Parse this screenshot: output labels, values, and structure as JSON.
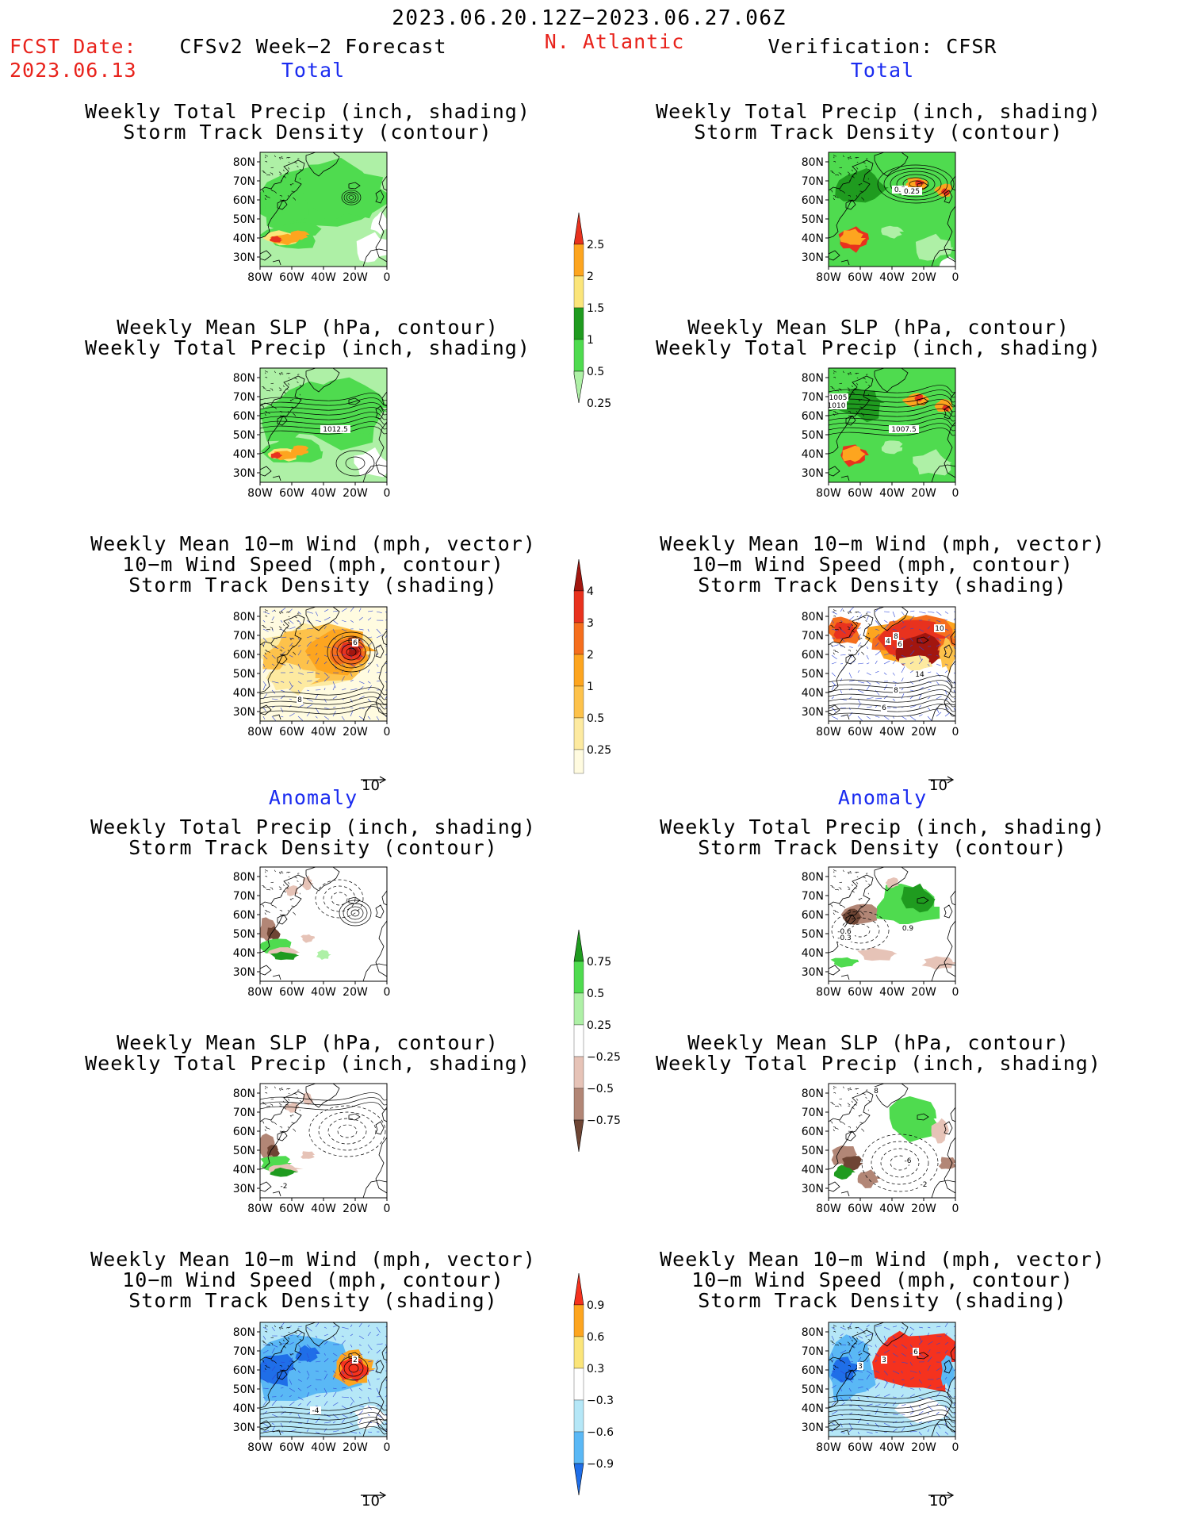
{
  "header": {
    "period": "2023.06.20.12Z−2023.06.27.06Z",
    "fcst_date_label": "FCST Date:",
    "fcst_date_value": "2023.06.13",
    "left_title": "CFSv2 Week−2 Forecast",
    "region": "N. Atlantic",
    "right_title": "Verification: CFSR"
  },
  "sections": {
    "total": "Total",
    "anomaly": "Anomaly"
  },
  "panel_titles": {
    "precip_storm": [
      "Weekly Total Precip (inch, shading)",
      "Storm Track Density (contour)"
    ],
    "slp_precip": [
      "Weekly Mean SLP (hPa, contour)",
      "Weekly Total Precip (inch, shading)"
    ],
    "wind_storm": [
      "Weekly Mean 10−m Wind (mph, vector)",
      "10−m Wind Speed (mph, contour)",
      "Storm Track Density (shading)"
    ]
  },
  "axes": {
    "lat_ticks": [
      "80N",
      "70N",
      "60N",
      "50N",
      "40N",
      "30N"
    ],
    "lon_ticks": [
      "80W",
      "60W",
      "40W",
      "20W",
      "0"
    ]
  },
  "vector_ref": "10",
  "contour_labels": {
    "p1r": [
      "0.5",
      "0.25"
    ],
    "p2l": [
      "1012.5"
    ],
    "p2r": [
      "1005",
      "1010",
      "1007.5"
    ],
    "p3l": [
      "6",
      "8"
    ],
    "p3r": [
      "10",
      "8",
      "4",
      "6",
      "14",
      "8",
      "6"
    ],
    "p4r": [
      "0.9",
      "-0.6",
      "-0.3"
    ],
    "p5l": [
      "-2"
    ],
    "p5r": [
      "8",
      "-6",
      "-2"
    ],
    "p6l": [
      "2",
      "-4"
    ],
    "p6r": [
      "6",
      "3",
      "3"
    ]
  },
  "colorbars": {
    "total_precip": {
      "labels": [
        "2.5",
        "2",
        "1.5",
        "1",
        "0.5",
        "0.25"
      ],
      "colors": [
        "#e8321e",
        "#fda51f",
        "#fbe57a",
        "#1f9b1f",
        "#4fdb4f",
        "#aef0a6"
      ]
    },
    "total_storm": {
      "labels": [
        "4",
        "3",
        "2",
        "1",
        "0.5",
        "0.25"
      ],
      "colors": [
        "#a2160f",
        "#e8321e",
        "#f56e1d",
        "#fda51f",
        "#fdc24b",
        "#fdeaa0",
        "#fffbe0"
      ]
    },
    "anom_precip": {
      "labels": [
        "0.75",
        "0.5",
        "0.25",
        "−0.25",
        "−0.5",
        "−0.75"
      ],
      "colors": [
        "#1f9b1f",
        "#4fdb4f",
        "#aef0a6",
        "#ffffff",
        "#e6c3b7",
        "#b28676",
        "#6e4534"
      ]
    },
    "anom_storm": {
      "labels": [
        "0.9",
        "0.6",
        "0.3",
        "−0.3",
        "−0.6",
        "−0.9"
      ],
      "colors": [
        "#f5321e",
        "#fda51f",
        "#fbe57a",
        "#ffffff",
        "#b5e7f7",
        "#5ab8f5",
        "#1f6ee8"
      ]
    }
  },
  "colors": {
    "red_text": "#e8221b",
    "blue_text": "#1a2bf0",
    "land_line": "#000000",
    "wind_vector": "#2e46d8"
  }
}
